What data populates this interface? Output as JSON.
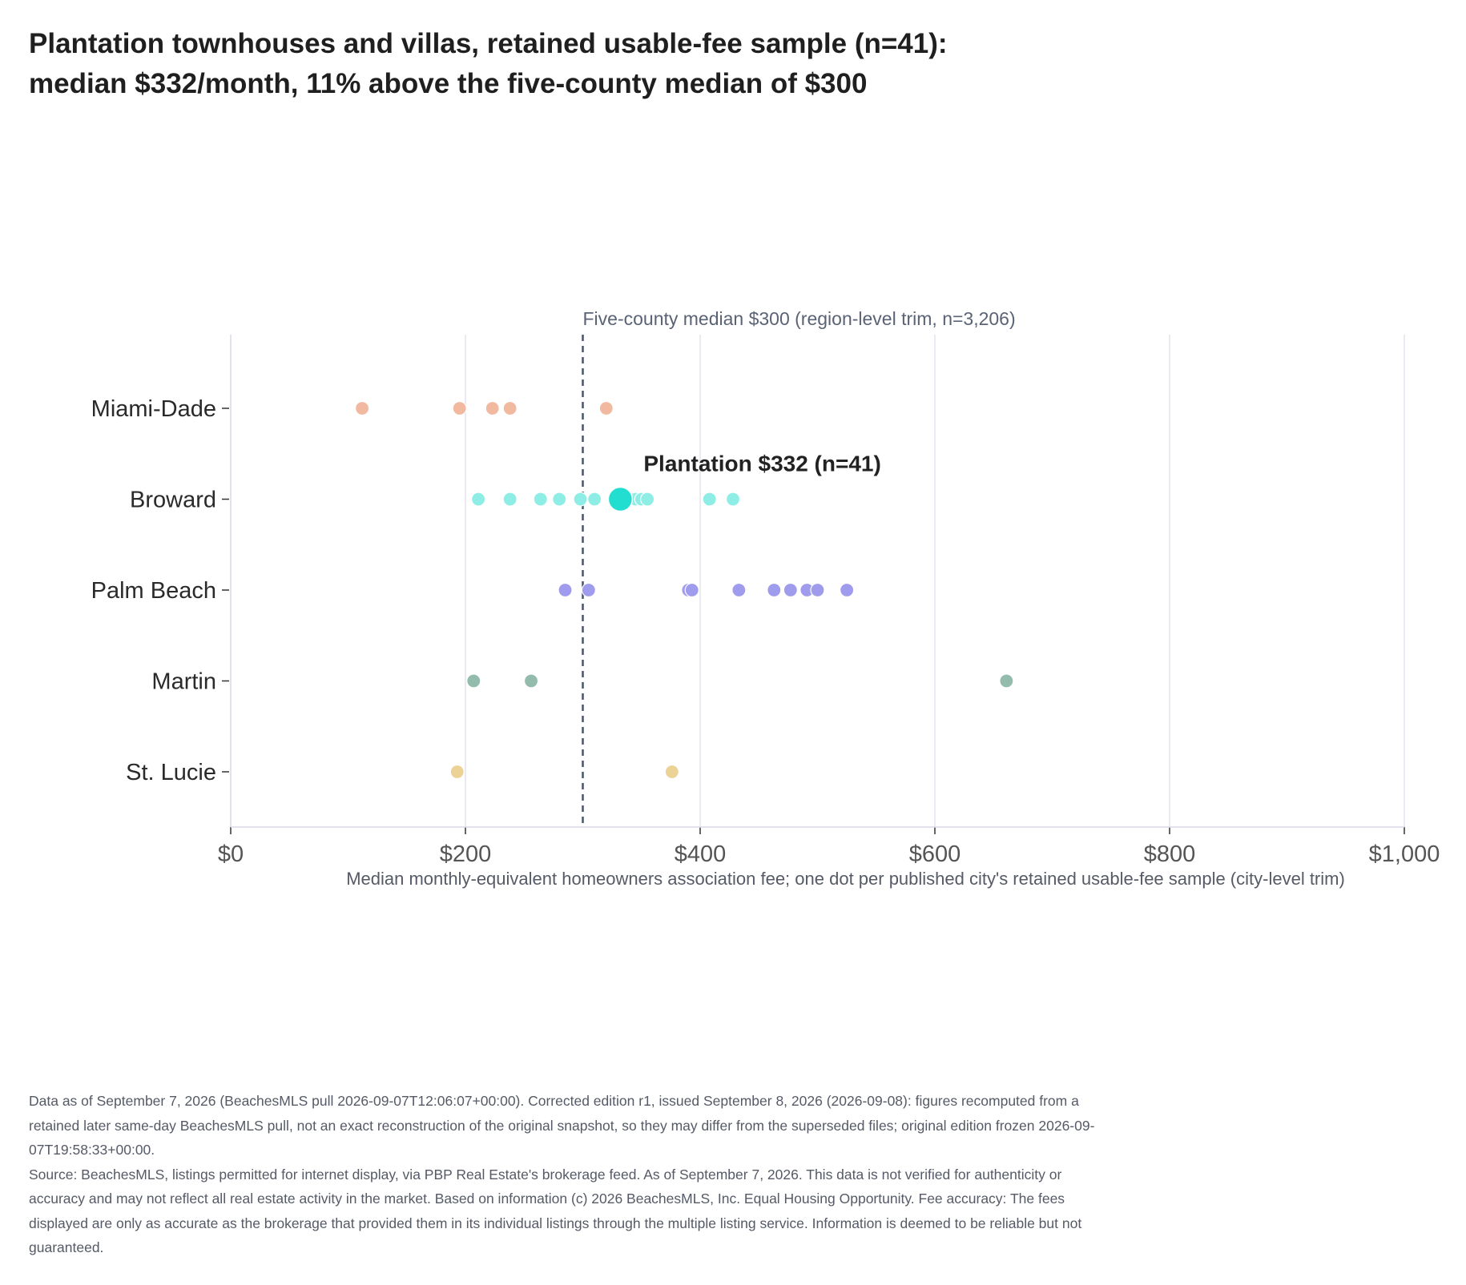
{
  "title": "Plantation townhouses and villas, retained usable-fee sample (n=41): median $332/month, 11% above the five-county median of $300",
  "footnotes": [
    "Data as of September 7, 2026 (BeachesMLS pull 2026-09-07T12:06:07+00:00). Corrected edition r1, issued September 8, 2026 (2026-09-08): figures recomputed from a retained later same-day BeachesMLS pull, not an exact reconstruction of the original snapshot, so they may differ from the superseded files; original edition frozen 2026-09-07T19:58:33+00:00.",
    "Source: BeachesMLS, listings permitted for internet display, via PBP Real Estate's brokerage feed. As of September 7, 2026. This data is not verified for authenticity or accuracy and may not reflect all real estate activity in the market. Based on information (c) 2026 BeachesMLS, Inc. Equal Housing Opportunity. Fee accuracy: The fees displayed are only as accurate as the brokerage that provided them in its individual listings through the multiple listing service. Information is deemed to be reliable but not guaranteed."
  ],
  "chart_data": {
    "type": "scatter",
    "title": "Plantation townhouses and villas, retained usable-fee sample (n=41): median $332/month, 11% above the five-county median of $300",
    "xlabel": "Median monthly-equivalent homeowners association fee; one dot per published city's retained usable-fee sample (city-level trim)",
    "ylabel": "",
    "xlim": [
      0,
      1000
    ],
    "x_ticks": [
      0,
      200,
      400,
      600,
      800,
      1000
    ],
    "x_tick_labels": [
      "$0",
      "$200",
      "$400",
      "$600",
      "$800",
      "$1,000"
    ],
    "grid": "vertical",
    "categories": [
      "Miami-Dade",
      "Broward",
      "Palm Beach",
      "Martin",
      "St. Lucie"
    ],
    "series": [
      {
        "name": "Miami-Dade",
        "color": "#f2b9a1",
        "values": [
          112,
          195,
          223,
          238,
          320
        ]
      },
      {
        "name": "Broward",
        "color": "#8eeee6",
        "values": [
          211,
          238,
          264,
          280,
          298,
          310,
          345,
          350,
          355,
          408,
          428
        ]
      },
      {
        "name": "Palm Beach",
        "color": "#a09ced",
        "values": [
          285,
          305,
          390,
          393,
          433,
          463,
          477,
          491,
          500,
          525
        ]
      },
      {
        "name": "Martin",
        "color": "#93bcad",
        "values": [
          207,
          256,
          661
        ]
      },
      {
        "name": "St. Lucie",
        "color": "#ecd295",
        "values": [
          193,
          376
        ]
      }
    ],
    "highlight": {
      "category": "Broward",
      "value": 332,
      "label": "Plantation $332 (n=41)",
      "color": "#22ded0"
    },
    "reference_line": {
      "value": 300,
      "label": "Five-county median $300 (region-level trim, n=3,206)",
      "style": "dashed",
      "color": "#4a5568"
    }
  }
}
